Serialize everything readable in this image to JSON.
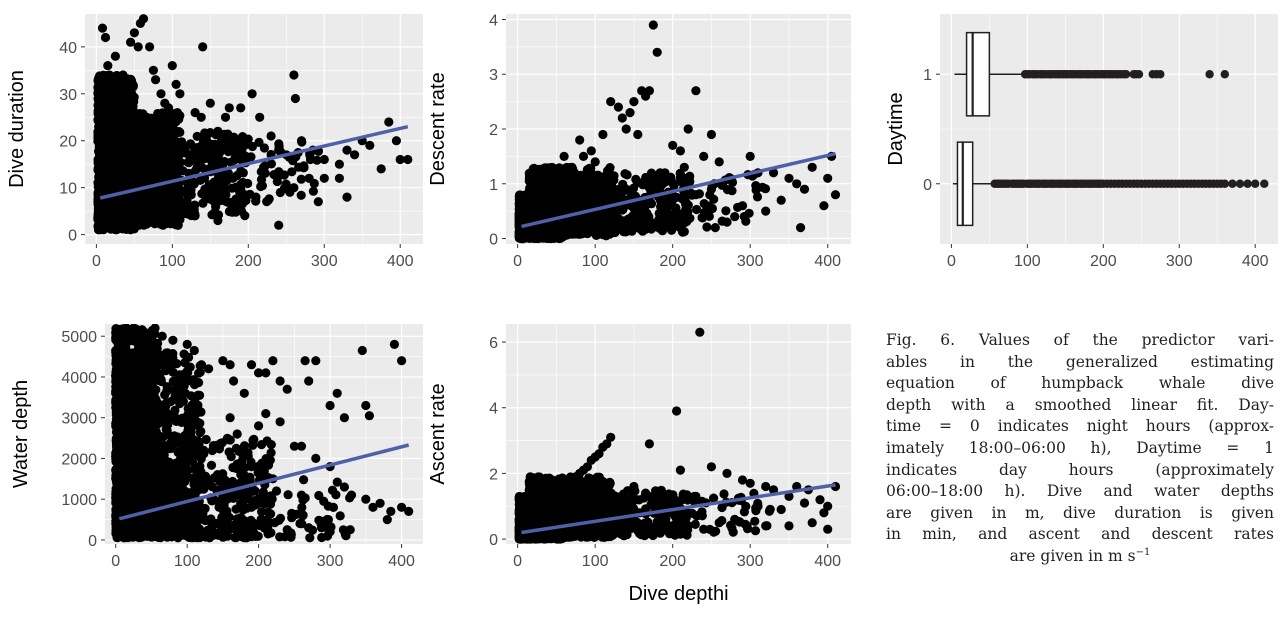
{
  "chart_data": [
    {
      "id": "dive_duration",
      "type": "scatter",
      "ylabel": "Dive duration",
      "xlim": [
        -15,
        430
      ],
      "ylim": [
        -2,
        47
      ],
      "xticks": [
        0,
        100,
        200,
        300,
        400
      ],
      "yticks": [
        0,
        10,
        20,
        30,
        40
      ],
      "fit_line": {
        "x": [
          5,
          410
        ],
        "y": [
          7.8,
          23
        ]
      },
      "points": [
        [
          8,
          44
        ],
        [
          12,
          42
        ],
        [
          15,
          36
        ],
        [
          20,
          33
        ],
        [
          25,
          38
        ],
        [
          30,
          31
        ],
        [
          35,
          34
        ],
        [
          45,
          41
        ],
        [
          50,
          43
        ],
        [
          55,
          40
        ],
        [
          58,
          45
        ],
        [
          62,
          46
        ],
        [
          70,
          40
        ],
        [
          75,
          35
        ],
        [
          78,
          33
        ],
        [
          85,
          30
        ],
        [
          90,
          28
        ],
        [
          95,
          27
        ],
        [
          100,
          36
        ],
        [
          105,
          32
        ],
        [
          110,
          30
        ],
        [
          130,
          26
        ],
        [
          138,
          25
        ],
        [
          140,
          40
        ],
        [
          145,
          21
        ],
        [
          150,
          28
        ],
        [
          160,
          22
        ],
        [
          170,
          25
        ],
        [
          175,
          27
        ],
        [
          180,
          19
        ],
        [
          190,
          27
        ],
        [
          195,
          19
        ],
        [
          205,
          30
        ],
        [
          215,
          25
        ],
        [
          230,
          21
        ],
        [
          240,
          18
        ],
        [
          250,
          17
        ],
        [
          260,
          34
        ],
        [
          262,
          29
        ],
        [
          270,
          20
        ],
        [
          285,
          18
        ],
        [
          300,
          16
        ],
        [
          320,
          15
        ],
        [
          330,
          18
        ],
        [
          340,
          17
        ],
        [
          350,
          20
        ],
        [
          360,
          19
        ],
        [
          375,
          14
        ],
        [
          385,
          24
        ],
        [
          395,
          20
        ],
        [
          410,
          16
        ],
        [
          400,
          16
        ],
        [
          320,
          12
        ],
        [
          330,
          8
        ],
        [
          240,
          2
        ],
        [
          160,
          3
        ],
        [
          130,
          4
        ],
        [
          210,
          8
        ],
        [
          260,
          10
        ],
        [
          280,
          12
        ],
        [
          300,
          12
        ],
        [
          220,
          14
        ],
        [
          180,
          12
        ]
      ],
      "dense": [
        {
          "x0": 2,
          "x1": 50,
          "y0": 1,
          "y1": 34,
          "n": 1200
        },
        {
          "x0": 10,
          "x1": 110,
          "y0": 2,
          "y1": 26,
          "n": 900
        },
        {
          "x0": 60,
          "x1": 200,
          "y0": 4,
          "y1": 22,
          "n": 350
        },
        {
          "x0": 150,
          "x1": 300,
          "y0": 7,
          "y1": 20,
          "n": 90
        }
      ]
    },
    {
      "id": "descent_rate",
      "type": "scatter",
      "ylabel": "Descent rate",
      "xlim": [
        -15,
        430
      ],
      "ylim": [
        -0.1,
        4.1
      ],
      "xticks": [
        0,
        100,
        200,
        300,
        400
      ],
      "yticks": [
        0,
        1,
        2,
        3,
        4
      ],
      "fit_line": {
        "x": [
          5,
          410
        ],
        "y": [
          0.22,
          1.55
        ]
      },
      "points": [
        [
          175,
          3.9
        ],
        [
          180,
          3.4
        ],
        [
          160,
          2.7
        ],
        [
          165,
          2.6
        ],
        [
          170,
          2.7
        ],
        [
          150,
          2.5
        ],
        [
          145,
          2.3
        ],
        [
          120,
          2.5
        ],
        [
          130,
          2.4
        ],
        [
          135,
          2.2
        ],
        [
          140,
          2.0
        ],
        [
          155,
          1.9
        ],
        [
          230,
          2.7
        ],
        [
          220,
          2.0
        ],
        [
          250,
          1.9
        ],
        [
          200,
          1.7
        ],
        [
          210,
          1.6
        ],
        [
          240,
          1.5
        ],
        [
          260,
          1.4
        ],
        [
          300,
          1.5
        ],
        [
          310,
          1.2
        ],
        [
          330,
          1.2
        ],
        [
          350,
          1.1
        ],
        [
          360,
          1.0
        ],
        [
          380,
          1.3
        ],
        [
          400,
          1.1
        ],
        [
          405,
          1.5
        ],
        [
          410,
          0.8
        ],
        [
          395,
          0.6
        ],
        [
          370,
          0.9
        ],
        [
          340,
          0.7
        ],
        [
          320,
          0.5
        ],
        [
          290,
          0.6
        ],
        [
          280,
          0.4
        ],
        [
          270,
          0.3
        ],
        [
          255,
          0.2
        ],
        [
          365,
          0.2
        ],
        [
          190,
          1.2
        ],
        [
          185,
          1.0
        ],
        [
          175,
          0.9
        ],
        [
          110,
          1.9
        ],
        [
          95,
          1.6
        ],
        [
          100,
          1.4
        ],
        [
          80,
          1.8
        ],
        [
          85,
          1.5
        ],
        [
          120,
          0.3
        ],
        [
          140,
          0.2
        ],
        [
          160,
          0.4
        ],
        [
          60,
          1.5
        ],
        [
          70,
          1.3
        ],
        [
          230,
          0.8
        ],
        [
          250,
          0.9
        ],
        [
          215,
          1.3
        ]
      ],
      "dense": [
        {
          "x0": 2,
          "x1": 60,
          "y0": 0,
          "y1": 0.8,
          "n": 1100
        },
        {
          "x0": 15,
          "x1": 120,
          "y0": 0.05,
          "y1": 1.3,
          "n": 700
        },
        {
          "x0": 80,
          "x1": 220,
          "y0": 0.1,
          "y1": 1.2,
          "n": 300
        },
        {
          "x0": 180,
          "x1": 320,
          "y0": 0.2,
          "y1": 1.2,
          "n": 70
        }
      ]
    },
    {
      "id": "daytime",
      "type": "box",
      "ylabel": "Daytime",
      "xlim": [
        -15,
        430
      ],
      "ylim": [
        -0.55,
        1.55
      ],
      "xticks": [
        0,
        100,
        200,
        300,
        400
      ],
      "yticks": [
        0,
        1
      ],
      "boxes": [
        {
          "group": 1,
          "q1": 20,
          "median": 28,
          "q3": 50,
          "whisker_lo": 4,
          "whisker_hi": 95,
          "outliers": [
            97,
            100,
            103,
            107,
            110,
            113,
            117,
            120,
            123,
            127,
            130,
            133,
            137,
            140,
            143,
            147,
            150,
            153,
            157,
            160,
            163,
            167,
            170,
            173,
            177,
            180,
            183,
            187,
            190,
            193,
            197,
            200,
            203,
            207,
            210,
            213,
            217,
            220,
            223,
            227,
            230,
            240,
            243,
            247,
            265,
            270,
            275,
            340,
            360
          ]
        },
        {
          "group": 0,
          "q1": 8,
          "median": 15,
          "q3": 28,
          "whisker_lo": 2,
          "whisker_hi": 55,
          "outliers": [
            57,
            60,
            63,
            66,
            69,
            72,
            75,
            80,
            83,
            86,
            89,
            92,
            95,
            100,
            103,
            106,
            110,
            113,
            116,
            120,
            123,
            126,
            130,
            133,
            136,
            140,
            143,
            146,
            150,
            153,
            156,
            160,
            163,
            166,
            170,
            173,
            176,
            180,
            183,
            186,
            190,
            193,
            196,
            200,
            205,
            210,
            215,
            220,
            225,
            230,
            235,
            240,
            245,
            250,
            255,
            260,
            265,
            270,
            275,
            280,
            285,
            290,
            295,
            300,
            305,
            310,
            315,
            320,
            325,
            330,
            335,
            340,
            345,
            350,
            355,
            360,
            370,
            380,
            390,
            400,
            412
          ]
        }
      ]
    },
    {
      "id": "water_depth",
      "type": "scatter",
      "ylabel": "Water depth",
      "xlim": [
        -15,
        430
      ],
      "ylim": [
        -100,
        5300
      ],
      "xticks": [
        0,
        100,
        200,
        300,
        400
      ],
      "yticks": [
        0,
        1000,
        2000,
        3000,
        4000,
        5000
      ],
      "fit_line": {
        "x": [
          5,
          410
        ],
        "y": [
          520,
          2330
        ]
      },
      "points": [
        [
          120,
          4300
        ],
        [
          130,
          4200
        ],
        [
          150,
          4400
        ],
        [
          160,
          4300
        ],
        [
          165,
          3900
        ],
        [
          180,
          3600
        ],
        [
          190,
          4300
        ],
        [
          200,
          4100
        ],
        [
          210,
          4100
        ],
        [
          220,
          4400
        ],
        [
          230,
          3900
        ],
        [
          240,
          3700
        ],
        [
          265,
          4400
        ],
        [
          270,
          3900
        ],
        [
          280,
          4400
        ],
        [
          300,
          3300
        ],
        [
          310,
          3600
        ],
        [
          320,
          3000
        ],
        [
          345,
          4650
        ],
        [
          350,
          3300
        ],
        [
          355,
          3050
        ],
        [
          390,
          4800
        ],
        [
          400,
          4400
        ],
        [
          160,
          3000
        ],
        [
          170,
          2600
        ],
        [
          200,
          2800
        ],
        [
          210,
          3100
        ],
        [
          230,
          2900
        ],
        [
          250,
          2300
        ],
        [
          260,
          2300
        ],
        [
          280,
          2000
        ],
        [
          300,
          1800
        ],
        [
          320,
          1300
        ],
        [
          330,
          1100
        ],
        [
          350,
          1000
        ],
        [
          360,
          800
        ],
        [
          370,
          900
        ],
        [
          385,
          700
        ],
        [
          400,
          800
        ],
        [
          410,
          700
        ],
        [
          380,
          500
        ],
        [
          300,
          200
        ],
        [
          270,
          300
        ],
        [
          240,
          250
        ],
        [
          150,
          1300
        ],
        [
          175,
          1600
        ],
        [
          190,
          1800
        ],
        [
          220,
          1500
        ],
        [
          100,
          4800
        ],
        [
          110,
          4650
        ],
        [
          80,
          4900
        ],
        [
          65,
          5000
        ],
        [
          40,
          5100
        ],
        [
          25,
          5200
        ],
        [
          12,
          5100
        ],
        [
          55,
          5200
        ],
        [
          260,
          1100
        ],
        [
          225,
          1200
        ],
        [
          195,
          1200
        ],
        [
          155,
          400
        ],
        [
          125,
          200
        ],
        [
          190,
          800
        ]
      ],
      "dense": [
        {
          "x0": 0,
          "x1": 60,
          "y0": 50,
          "y1": 5200,
          "n": 1200
        },
        {
          "x0": 0,
          "x1": 120,
          "y0": 50,
          "y1": 4600,
          "n": 800
        },
        {
          "x0": 60,
          "x1": 220,
          "y0": 50,
          "y1": 2500,
          "n": 350
        },
        {
          "x0": 150,
          "x1": 330,
          "y0": 50,
          "y1": 1500,
          "n": 100
        }
      ]
    },
    {
      "id": "ascent_rate",
      "type": "scatter",
      "ylabel": "Ascent rate",
      "xlabel": "Dive depthi",
      "xlim": [
        -15,
        430
      ],
      "ylim": [
        -0.15,
        6.55
      ],
      "xticks": [
        0,
        100,
        200,
        300,
        400
      ],
      "yticks": [
        0,
        2,
        4,
        6
      ],
      "fit_line": {
        "x": [
          5,
          410
        ],
        "y": [
          0.2,
          1.65
        ]
      },
      "points": [
        [
          235,
          6.3
        ],
        [
          205,
          3.9
        ],
        [
          170,
          2.9
        ],
        [
          120,
          3.1
        ],
        [
          115,
          2.9
        ],
        [
          110,
          2.8
        ],
        [
          105,
          2.6
        ],
        [
          100,
          2.5
        ],
        [
          95,
          2.4
        ],
        [
          90,
          2.2
        ],
        [
          85,
          2.1
        ],
        [
          80,
          2.0
        ],
        [
          75,
          1.9
        ],
        [
          70,
          1.8
        ],
        [
          210,
          2.1
        ],
        [
          250,
          2.2
        ],
        [
          270,
          2.0
        ],
        [
          290,
          1.8
        ],
        [
          300,
          1.7
        ],
        [
          320,
          1.6
        ],
        [
          330,
          1.5
        ],
        [
          350,
          1.3
        ],
        [
          360,
          1.6
        ],
        [
          375,
          1.5
        ],
        [
          390,
          1.2
        ],
        [
          400,
          1.0
        ],
        [
          410,
          1.6
        ],
        [
          395,
          0.8
        ],
        [
          400,
          0.3
        ],
        [
          380,
          0.5
        ],
        [
          340,
          0.9
        ],
        [
          310,
          1.0
        ],
        [
          280,
          0.6
        ],
        [
          260,
          0.5
        ],
        [
          240,
          0.3
        ],
        [
          220,
          0.4
        ],
        [
          200,
          0.9
        ],
        [
          180,
          1.2
        ],
        [
          165,
          1.4
        ],
        [
          150,
          1.6
        ],
        [
          140,
          1.2
        ],
        [
          230,
          1.3
        ],
        [
          190,
          0.7
        ],
        [
          160,
          0.3
        ],
        [
          130,
          0.2
        ],
        [
          350,
          0.4
        ],
        [
          320,
          0.4
        ],
        [
          370,
          1.1
        ]
      ],
      "dense": [
        {
          "x0": 2,
          "x1": 60,
          "y0": 0,
          "y1": 1.3,
          "n": 1100
        },
        {
          "x0": 15,
          "x1": 120,
          "y0": 0.05,
          "y1": 1.9,
          "n": 700
        },
        {
          "x0": 80,
          "x1": 220,
          "y0": 0.1,
          "y1": 1.5,
          "n": 300
        },
        {
          "x0": 180,
          "x1": 330,
          "y0": 0.2,
          "y1": 1.4,
          "n": 70
        }
      ]
    }
  ],
  "caption": {
    "lines": [
      "Fig. 6. Values of the predictor vari-",
      "ables in the generalized estimating",
      "equation of humpback whale dive",
      "depth with a smoothed linear fit. Day-",
      "time = 0 indicates night hours (approx-",
      "imately 18:00–06:00 h), Daytime = 1",
      "indicates day hours (approximately",
      "06:00–18:00 h). Dive and water depths",
      "are given in m, dive duration is given",
      "in min, and ascent and descent rates"
    ],
    "last_line": "are given in m s",
    "last_sup": "−1"
  },
  "colors": {
    "panel_bg": "#ebebeb",
    "grid": "#ffffff",
    "point": "#000000",
    "fit_line": "#4f5fa8",
    "axis_text": "#4d4d4d",
    "title_text": "#000000",
    "box_line": "#231f20"
  }
}
